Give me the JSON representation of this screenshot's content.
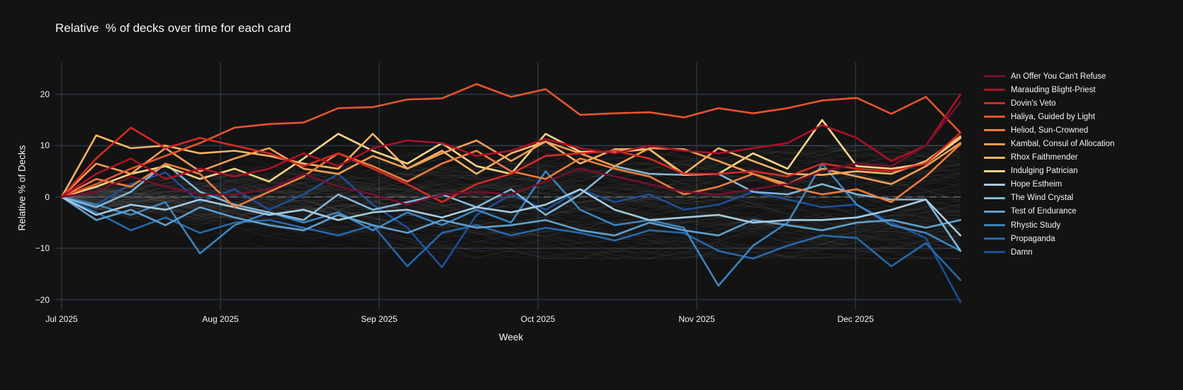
{
  "chart_data": {
    "type": "line",
    "title": "Relative  % of decks over time for each card",
    "xlabel": "Week",
    "ylabel": "Relative % of Decks",
    "x_unit": "weekly points from Jul 2025 through Dec 2025",
    "week_count": 27,
    "x_tick_labels": [
      "Jul 2025",
      "Aug 2025",
      "Sep 2025",
      "Oct 2025",
      "Nov 2025",
      "Dec 2025"
    ],
    "y_ticks": [
      20,
      10,
      0,
      -10,
      -20
    ],
    "ylim": [
      -26.5,
      26.5
    ],
    "grid": true,
    "zero_line": {
      "style": "dashed",
      "color": "#585858"
    },
    "legend_position": "right",
    "background_series": {
      "description": "many unlabeled cards drawn as faint gray lines around 0",
      "count": 110,
      "color": "#aaaaaa",
      "opacity": 0.08,
      "value_range": [
        -12,
        10
      ]
    },
    "series": [
      {
        "name": "An Offer You Can't Refuse",
        "color": "#73102c",
        "values": [
          0,
          1,
          4,
          2,
          0.5,
          0.5,
          1.5,
          4.5,
          2,
          0.5,
          -1.5,
          0.5,
          1,
          0.5,
          3,
          5.5,
          4,
          2.5,
          1,
          0.5,
          1.5,
          2.5,
          5,
          6.5,
          6,
          10,
          18.5
        ]
      },
      {
        "name": "Marauding Blight-Priest",
        "color": "#ad1028",
        "values": [
          0,
          4.5,
          7.5,
          3.5,
          5.5,
          4,
          5.5,
          8.5,
          6,
          9.5,
          11,
          10.5,
          8,
          9,
          11.3,
          9.5,
          8.5,
          10,
          9,
          8.5,
          9.5,
          10.5,
          14,
          11.5,
          7,
          10,
          20
        ]
      },
      {
        "name": "Dovin's Veto",
        "color": "#d42a26",
        "values": [
          0,
          7.5,
          13.5,
          9.5,
          11.5,
          10,
          8.5,
          6,
          8.5,
          5.5,
          2.5,
          -1,
          2.5,
          4.5,
          8,
          8.5,
          9,
          7.5,
          4.5,
          4.5,
          5,
          4,
          6.5,
          5.5,
          5,
          6.5,
          12.5
        ]
      },
      {
        "name": "Haliya, Guided by Light",
        "color": "#e8542c",
        "values": [
          0,
          2.5,
          5.5,
          8,
          10.5,
          13.5,
          14.2,
          14.5,
          17.3,
          17.5,
          19,
          19.2,
          22,
          19.5,
          21,
          16,
          16.3,
          16.5,
          15.5,
          17.3,
          16.3,
          17.3,
          18.8,
          19.3,
          16.2,
          19.5,
          12.5
        ]
      },
      {
        "name": "Heliod, Sun-Crowned",
        "color": "#ee7d3b",
        "values": [
          0,
          3.5,
          2,
          6.5,
          4.5,
          -2,
          1,
          4,
          8.5,
          6,
          3,
          6.5,
          9,
          5,
          3.5,
          7.5,
          5.5,
          4,
          0.5,
          2,
          4.5,
          2,
          0.5,
          1.5,
          -1,
          4,
          10.3
        ]
      },
      {
        "name": "Kambal, Consul of Allocation",
        "color": "#f59e53",
        "values": [
          0,
          6.5,
          4.5,
          9.5,
          5,
          7.5,
          9.5,
          5.5,
          4.5,
          8,
          5.5,
          8.5,
          11,
          7,
          10.8,
          8.5,
          6,
          9.5,
          9.3,
          7,
          4.5,
          2.5,
          5.5,
          4,
          2.5,
          6,
          10.5
        ]
      },
      {
        "name": "Rhox Faithmender",
        "color": "#f9b565",
        "values": [
          0,
          12,
          9.5,
          10,
          8.5,
          9,
          8,
          6.5,
          5.5,
          12.3,
          5.5,
          9,
          4.5,
          8.5,
          10.8,
          6.5,
          9.3,
          9.3,
          4.5,
          9.5,
          7,
          4.5,
          4.3,
          5,
          4.5,
          7,
          11.8
        ]
      },
      {
        "name": "Indulging Patrician",
        "color": "#fbd687",
        "values": [
          0,
          2,
          4.5,
          6,
          3.5,
          5.5,
          3,
          7.5,
          12.3,
          9,
          6.5,
          10.5,
          6,
          4.5,
          12.3,
          8.8,
          8.8,
          9.3,
          4.3,
          4.5,
          8.5,
          5.5,
          15,
          6,
          5.5,
          6.5,
          11.5
        ]
      },
      {
        "name": "Hope Estheim",
        "color": "#a6cbe0",
        "values": [
          0,
          -3.5,
          -1.5,
          -2.5,
          -0.5,
          -2,
          -3.5,
          -2.5,
          -4.5,
          -3,
          -2.5,
          -4,
          -2,
          -3,
          -1.5,
          1.5,
          -2.5,
          -4.5,
          -4,
          -3.5,
          -5,
          -4.5,
          -4.5,
          -4,
          -2.5,
          -0.5,
          -7.5
        ]
      },
      {
        "name": "The Wind Crystal",
        "color": "#82b7d8",
        "values": [
          0,
          -2,
          1,
          6.5,
          1,
          -1.5,
          -3,
          -4.5,
          0.5,
          -2.5,
          -1,
          0.5,
          -2,
          1.5,
          -3.5,
          0.5,
          6,
          4.5,
          4.3,
          4.5,
          1,
          0.5,
          2.5,
          0.5,
          -0.5,
          -0.5,
          -10.5
        ]
      },
      {
        "name": "Test of Endurance",
        "color": "#5f9fcb",
        "values": [
          0,
          -4.5,
          -2.5,
          -5.5,
          -2,
          -4,
          -5.5,
          -6.5,
          -3.5,
          -5.5,
          -7,
          -4.5,
          -6,
          -5.5,
          -4.5,
          -6.5,
          -7.5,
          -5,
          -6.5,
          -7.5,
          -4.5,
          -5.5,
          -6.5,
          -5,
          -4.5,
          -6,
          -4.5
        ]
      },
      {
        "name": "Rhystic Study",
        "color": "#3c84be",
        "values": [
          0,
          -1.5,
          -3.5,
          -1,
          -11,
          -5.5,
          -3,
          -5,
          -3,
          -6.5,
          -3,
          -5.5,
          -2.5,
          -5,
          5,
          -2.5,
          -5.5,
          -4.5,
          -6,
          -17.3,
          -9.5,
          -5,
          6.5,
          -1.5,
          -5.5,
          -7,
          -10.5
        ]
      },
      {
        "name": "Propaganda",
        "color": "#2868ab",
        "values": [
          0,
          -3,
          -6.5,
          -4,
          -7,
          -5,
          -4.5,
          -6,
          -7.5,
          -5.5,
          -13.5,
          -7,
          -5.5,
          -7.5,
          -6,
          -7,
          -8.5,
          -6.5,
          -7,
          -10.5,
          -12,
          -9.5,
          -7.5,
          -8,
          -13.5,
          -9,
          -16.2
        ]
      },
      {
        "name": "Damn",
        "color": "#1e4f96",
        "values": [
          0,
          -1.5,
          2.5,
          4.8,
          -1,
          1.5,
          -2.5,
          0.5,
          4.5,
          -1.5,
          -6,
          -13.7,
          -3.5,
          0.5,
          -2.5,
          1.5,
          -1,
          0.5,
          -2.5,
          -1.5,
          1,
          -0.5,
          -2,
          -1.5,
          -5,
          -8,
          -20.5
        ]
      }
    ]
  }
}
